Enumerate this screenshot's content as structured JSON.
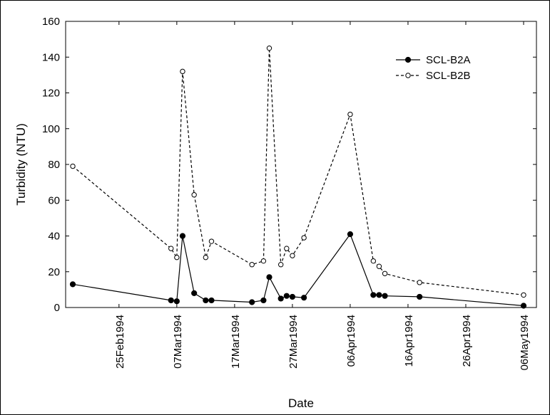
{
  "chart_data": {
    "type": "line",
    "title": "",
    "xlabel": "Date",
    "ylabel": "Turbidity (NTU)",
    "ylim": [
      0,
      160
    ],
    "yticks": [
      0,
      20,
      40,
      60,
      80,
      100,
      120,
      140,
      160
    ],
    "xlim": [
      "1994-02-17",
      "1994-05-06"
    ],
    "xticks": [
      {
        "date": "1994-02-25",
        "label": "25Feb1994"
      },
      {
        "date": "1994-03-07",
        "label": "07Mar1994"
      },
      {
        "date": "1994-03-17",
        "label": "17Mar1994"
      },
      {
        "date": "1994-03-27",
        "label": "27Mar1994"
      },
      {
        "date": "1994-04-06",
        "label": "06Apr1994"
      },
      {
        "date": "1994-04-16",
        "label": "16Apr1994"
      },
      {
        "date": "1994-04-26",
        "label": "26Apr1994"
      },
      {
        "date": "1994-05-06",
        "label": "06May1994"
      }
    ],
    "grid": false,
    "legend": "top-right",
    "series": [
      {
        "name": "SCL-B2A",
        "line_style": "solid",
        "marker": "filled-circle",
        "color": "#000000",
        "points": [
          {
            "x": "1994-02-17",
            "y": 13
          },
          {
            "x": "1994-03-06",
            "y": 4
          },
          {
            "x": "1994-03-07",
            "y": 3.5
          },
          {
            "x": "1994-03-08",
            "y": 40
          },
          {
            "x": "1994-03-10",
            "y": 8
          },
          {
            "x": "1994-03-12",
            "y": 4
          },
          {
            "x": "1994-03-13",
            "y": 4
          },
          {
            "x": "1994-03-20",
            "y": 3
          },
          {
            "x": "1994-03-22",
            "y": 4
          },
          {
            "x": "1994-03-23",
            "y": 17
          },
          {
            "x": "1994-03-25",
            "y": 5
          },
          {
            "x": "1994-03-26",
            "y": 6.5
          },
          {
            "x": "1994-03-27",
            "y": 6
          },
          {
            "x": "1994-03-29",
            "y": 5.5
          },
          {
            "x": "1994-04-06",
            "y": 41
          },
          {
            "x": "1994-04-10",
            "y": 7
          },
          {
            "x": "1994-04-11",
            "y": 7
          },
          {
            "x": "1994-04-12",
            "y": 6.5
          },
          {
            "x": "1994-04-18",
            "y": 6
          },
          {
            "x": "1994-05-06",
            "y": 1
          }
        ]
      },
      {
        "name": "SCL-B2B",
        "line_style": "dashed",
        "marker": "open-circle",
        "color": "#000000",
        "points": [
          {
            "x": "1994-02-17",
            "y": 79
          },
          {
            "x": "1994-03-06",
            "y": 33
          },
          {
            "x": "1994-03-07",
            "y": 28
          },
          {
            "x": "1994-03-08",
            "y": 132
          },
          {
            "x": "1994-03-10",
            "y": 63
          },
          {
            "x": "1994-03-12",
            "y": 28
          },
          {
            "x": "1994-03-13",
            "y": 37
          },
          {
            "x": "1994-03-20",
            "y": 24
          },
          {
            "x": "1994-03-22",
            "y": 26
          },
          {
            "x": "1994-03-23",
            "y": 145
          },
          {
            "x": "1994-03-25",
            "y": 24
          },
          {
            "x": "1994-03-26",
            "y": 33
          },
          {
            "x": "1994-03-27",
            "y": 29
          },
          {
            "x": "1994-03-29",
            "y": 39
          },
          {
            "x": "1994-04-06",
            "y": 108
          },
          {
            "x": "1994-04-10",
            "y": 26
          },
          {
            "x": "1994-04-11",
            "y": 23
          },
          {
            "x": "1994-04-12",
            "y": 19
          },
          {
            "x": "1994-04-18",
            "y": 14
          },
          {
            "x": "1994-05-06",
            "y": 7
          }
        ]
      }
    ]
  }
}
